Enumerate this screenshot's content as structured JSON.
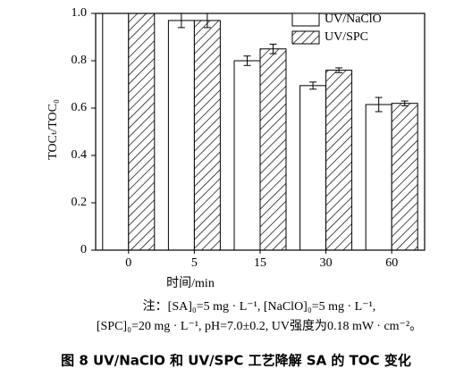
{
  "chart_data": {
    "type": "bar",
    "xlabel": "时间/min",
    "ylabel": "TOCₜ/TOC₀",
    "categories": [
      "0",
      "5",
      "15",
      "30",
      "60"
    ],
    "series": [
      {
        "name": "UV/NaClO",
        "color": "#ffffff",
        "hatch": false,
        "values": [
          1.0,
          0.97,
          0.8,
          0.695,
          0.615
        ],
        "errors": [
          0,
          0.03,
          0.02,
          0.015,
          0.03
        ]
      },
      {
        "name": "UV/SPC",
        "color": "#000000",
        "hatch": true,
        "values": [
          1.0,
          0.97,
          0.85,
          0.76,
          0.62
        ],
        "errors": [
          0,
          0.03,
          0.02,
          0.01,
          0.01
        ]
      }
    ],
    "ylim": [
      0,
      1.0
    ],
    "yticks": [
      0,
      0.2,
      0.4,
      0.6,
      0.8,
      {
        "value": 1.0,
        "label": "1.0"
      }
    ],
    "legend": "upper-right",
    "note": [
      "注：[SA]₀=5 mg · L⁻¹, [NaClO]₀=5 mg · L⁻¹,",
      "[SPC]₀=20 mg · L⁻¹, pH=7.0±0.2, UV强度为0.18 mW · cm⁻²。"
    ],
    "caption": "图 8   UV/NaClO 和 UV/SPC 工艺降解 SA 的 TOC 变化"
  }
}
